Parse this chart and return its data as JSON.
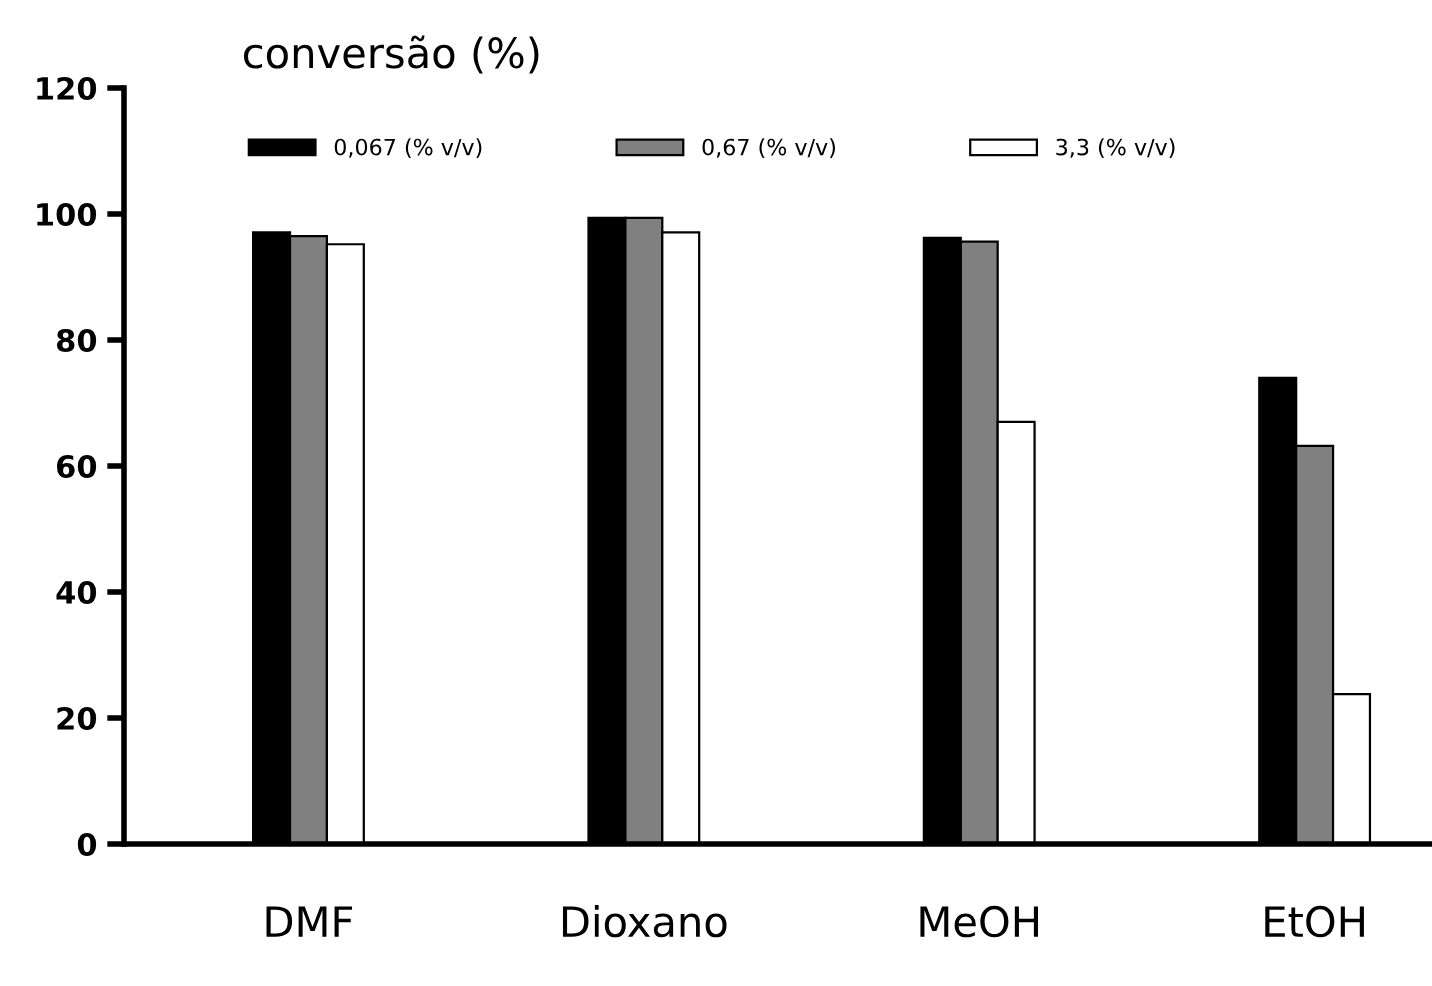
{
  "chart_data": {
    "type": "bar",
    "ylabel": "conversão (%)",
    "categories": [
      "DMF",
      "Dioxano",
      "MeOH",
      "EtOH"
    ],
    "series": [
      {
        "name": "0,067 (% v/v)",
        "color": "#000000",
        "values": [
          97.1,
          99.4,
          96.2,
          74
        ]
      },
      {
        "name": "0,67 (% v/v)",
        "color": "#808080",
        "values": [
          96.5,
          99.4,
          95.6,
          63.2
        ]
      },
      {
        "name": "3,3 (% v/v)",
        "color": "#ffffff",
        "values": [
          95.2,
          97.1,
          67,
          23.8
        ]
      }
    ],
    "ylim": [
      0,
      120
    ],
    "yticks": [
      0,
      20,
      40,
      60,
      80,
      100,
      120
    ],
    "grid": false,
    "legend": "top"
  }
}
